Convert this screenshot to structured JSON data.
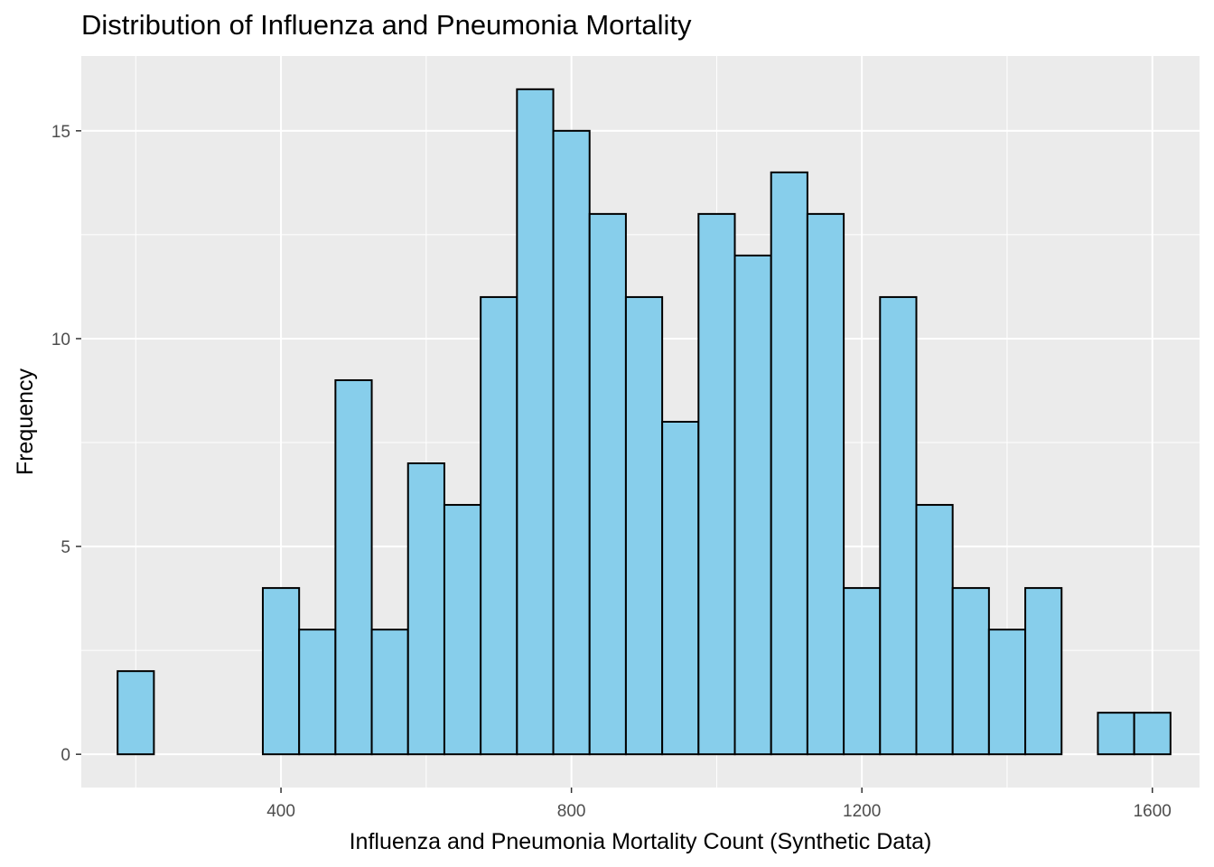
{
  "chart_data": {
    "type": "bar",
    "title": "Distribution of Influenza and Pneumonia Mortality",
    "xlabel": "Influenza and Pneumonia Mortality Count (Synthetic Data)",
    "ylabel": "Frequency",
    "xlim": [
      125,
      1665
    ],
    "ylim": [
      -0.8,
      16.8
    ],
    "x_ticks": [
      400,
      800,
      1200,
      1600
    ],
    "y_ticks": [
      0,
      5,
      10,
      15
    ],
    "grid": true,
    "legend": "none",
    "bin_width": 50,
    "series": [
      {
        "bins": [
          {
            "x0": 175,
            "x1": 225,
            "count": 2
          },
          {
            "x0": 225,
            "x1": 275,
            "count": 0
          },
          {
            "x0": 275,
            "x1": 325,
            "count": 0
          },
          {
            "x0": 325,
            "x1": 375,
            "count": 0
          },
          {
            "x0": 375,
            "x1": 425,
            "count": 4
          },
          {
            "x0": 425,
            "x1": 475,
            "count": 3
          },
          {
            "x0": 475,
            "x1": 525,
            "count": 9
          },
          {
            "x0": 525,
            "x1": 575,
            "count": 3
          },
          {
            "x0": 575,
            "x1": 625,
            "count": 7
          },
          {
            "x0": 625,
            "x1": 675,
            "count": 6
          },
          {
            "x0": 675,
            "x1": 725,
            "count": 11
          },
          {
            "x0": 725,
            "x1": 775,
            "count": 16
          },
          {
            "x0": 775,
            "x1": 825,
            "count": 15
          },
          {
            "x0": 825,
            "x1": 875,
            "count": 13
          },
          {
            "x0": 875,
            "x1": 925,
            "count": 11
          },
          {
            "x0": 925,
            "x1": 975,
            "count": 8
          },
          {
            "x0": 975,
            "x1": 1025,
            "count": 13
          },
          {
            "x0": 1025,
            "x1": 1075,
            "count": 12
          },
          {
            "x0": 1075,
            "x1": 1125,
            "count": 14
          },
          {
            "x0": 1125,
            "x1": 1175,
            "count": 13
          },
          {
            "x0": 1175,
            "x1": 1225,
            "count": 4
          },
          {
            "x0": 1225,
            "x1": 1275,
            "count": 11
          },
          {
            "x0": 1275,
            "x1": 1325,
            "count": 6
          },
          {
            "x0": 1325,
            "x1": 1375,
            "count": 4
          },
          {
            "x0": 1375,
            "x1": 1425,
            "count": 3
          },
          {
            "x0": 1425,
            "x1": 1475,
            "count": 4
          },
          {
            "x0": 1475,
            "x1": 1525,
            "count": 0
          },
          {
            "x0": 1525,
            "x1": 1575,
            "count": 1
          },
          {
            "x0": 1575,
            "x1": 1625,
            "count": 1
          }
        ]
      }
    ],
    "colors": {
      "bar_fill": "#87CEEB",
      "bar_stroke": "#000000",
      "panel_background": "#EBEBEB",
      "grid_major": "#FFFFFF",
      "tick_text": "#4D4D4D"
    }
  }
}
